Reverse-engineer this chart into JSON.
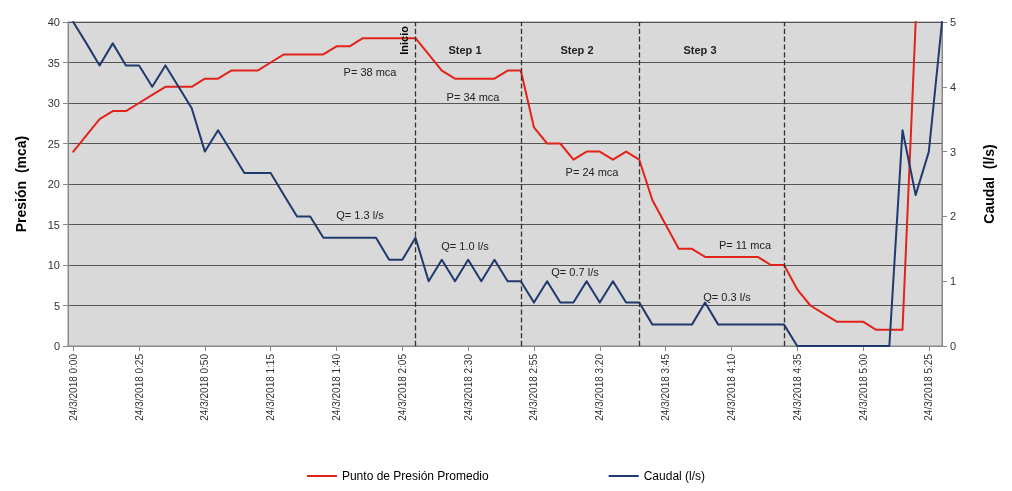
{
  "chart_data": {
    "type": "line",
    "ylabel": "Presión  (mca)",
    "y2label": "Caudal  (l/s)",
    "x": [
      "2018-03-24T00:00",
      "2018-03-24T00:05",
      "2018-03-24T00:10",
      "2018-03-24T00:15",
      "2018-03-24T00:20",
      "2018-03-24T00:25",
      "2018-03-24T00:30",
      "2018-03-24T00:35",
      "2018-03-24T00:40",
      "2018-03-24T00:45",
      "2018-03-24T00:50",
      "2018-03-24T00:55",
      "2018-03-24T01:00",
      "2018-03-24T01:05",
      "2018-03-24T01:10",
      "2018-03-24T01:15",
      "2018-03-24T01:20",
      "2018-03-24T01:25",
      "2018-03-24T01:30",
      "2018-03-24T01:35",
      "2018-03-24T01:40",
      "2018-03-24T01:45",
      "2018-03-24T01:50",
      "2018-03-24T01:55",
      "2018-03-24T02:00",
      "2018-03-24T02:05",
      "2018-03-24T02:10",
      "2018-03-24T02:15",
      "2018-03-24T02:20",
      "2018-03-24T02:25",
      "2018-03-24T02:30",
      "2018-03-24T02:35",
      "2018-03-24T02:40",
      "2018-03-24T02:45",
      "2018-03-24T02:50",
      "2018-03-24T02:55",
      "2018-03-24T03:00",
      "2018-03-24T03:05",
      "2018-03-24T03:10",
      "2018-03-24T03:15",
      "2018-03-24T03:20",
      "2018-03-24T03:25",
      "2018-03-24T03:30",
      "2018-03-24T03:35",
      "2018-03-24T03:40",
      "2018-03-24T03:45",
      "2018-03-24T03:50",
      "2018-03-24T03:55",
      "2018-03-24T04:00",
      "2018-03-24T04:05",
      "2018-03-24T04:10",
      "2018-03-24T04:15",
      "2018-03-24T04:20",
      "2018-03-24T04:25",
      "2018-03-24T04:30",
      "2018-03-24T04:35",
      "2018-03-24T04:40",
      "2018-03-24T04:45",
      "2018-03-24T04:50",
      "2018-03-24T04:55",
      "2018-03-24T05:00",
      "2018-03-24T05:05",
      "2018-03-24T05:10",
      "2018-03-24T05:15",
      "2018-03-24T05:20",
      "2018-03-24T05:25",
      "2018-03-24T05:30"
    ],
    "series": [
      {
        "name": "Punto de Presión Promedio",
        "color": "#e2231a",
        "values": [
          24,
          26,
          28,
          29,
          29,
          30,
          31,
          32,
          32,
          32,
          33,
          33,
          34,
          34,
          34,
          35,
          36,
          36,
          36,
          36,
          37,
          37,
          38,
          38,
          38,
          38,
          38,
          36,
          34,
          33,
          33,
          33,
          33,
          34,
          34,
          27,
          25,
          25,
          23,
          24,
          24,
          23,
          24,
          23,
          18,
          15,
          12,
          12,
          11,
          11,
          11,
          11,
          11,
          10,
          10,
          7,
          5,
          4,
          3,
          3,
          3,
          2,
          2,
          2,
          40,
          null,
          null
        ]
      },
      {
        "name": "Caudal (l/s)",
        "color": "#1f3a6e",
        "axis": "y2",
        "values": [
          5,
          4.67,
          4.33,
          4.67,
          4.33,
          4.33,
          4,
          4.33,
          4,
          3.67,
          3,
          3.33,
          3,
          2.67,
          2.67,
          2.67,
          2.33,
          2,
          2,
          1.67,
          1.67,
          1.67,
          1.67,
          1.67,
          1.33,
          1.33,
          1.67,
          1,
          1.33,
          1,
          1.33,
          1,
          1.33,
          1,
          1,
          0.67,
          1,
          0.67,
          0.67,
          1,
          0.67,
          1,
          0.67,
          0.67,
          0.33,
          0.33,
          0.33,
          0.33,
          0.67,
          0.33,
          0.33,
          0.33,
          0.33,
          0.33,
          0.33,
          0,
          0,
          0,
          0,
          0,
          0,
          0,
          0,
          3.33,
          2.33,
          3,
          5
        ]
      }
    ],
    "xlim": [
      "2018-03-23T23:58",
      "2018-03-24T05:30"
    ],
    "xticks": [
      {
        "value": "2018-03-24T00:00",
        "label": "24/3/2018 0:00"
      },
      {
        "value": "2018-03-24T00:25",
        "label": "24/3/2018 0:25"
      },
      {
        "value": "2018-03-24T00:50",
        "label": "24/3/2018 0:50"
      },
      {
        "value": "2018-03-24T01:15",
        "label": "24/3/2018 1:15"
      },
      {
        "value": "2018-03-24T01:40",
        "label": "24/3/2018 1:40"
      },
      {
        "value": "2018-03-24T02:05",
        "label": "24/3/2018 2:05"
      },
      {
        "value": "2018-03-24T02:30",
        "label": "24/3/2018 2:30"
      },
      {
        "value": "2018-03-24T02:55",
        "label": "24/3/2018 2:55"
      },
      {
        "value": "2018-03-24T03:20",
        "label": "24/3/2018 3:20"
      },
      {
        "value": "2018-03-24T03:45",
        "label": "24/3/2018 3:45"
      },
      {
        "value": "2018-03-24T04:10",
        "label": "24/3/2018 4:10"
      },
      {
        "value": "2018-03-24T04:35",
        "label": "24/3/2018 4:35"
      },
      {
        "value": "2018-03-24T05:00",
        "label": "24/3/2018 5:00"
      },
      {
        "value": "2018-03-24T05:25",
        "label": "24/3/2018 5:25"
      }
    ],
    "ylim": [
      0,
      40
    ],
    "yticks": [
      0,
      5,
      10,
      15,
      20,
      25,
      30,
      35,
      40
    ],
    "y2lim": [
      0,
      5
    ],
    "y2ticks": [
      0,
      1,
      2,
      3,
      4,
      5
    ],
    "grid": "y",
    "legend": "bottom",
    "marker": "none",
    "line_style": "solid",
    "ref_lines": [
      {
        "axis": "x",
        "value": "2018-03-24T02:10",
        "label": "Inicio",
        "line_style": "dashed",
        "color": "#333333"
      },
      {
        "axis": "x",
        "value": "2018-03-24T02:50",
        "label": null,
        "line_style": "dashed",
        "color": "#333333"
      },
      {
        "axis": "x",
        "value": "2018-03-24T03:35",
        "label": null,
        "line_style": "dashed",
        "color": "#333333"
      },
      {
        "axis": "x",
        "value": "2018-03-24T04:30",
        "label": null,
        "line_style": "dashed",
        "color": "#333333"
      }
    ],
    "annotations": [
      "Step 1",
      "Step 2",
      "Step 3",
      "P= 38 mca",
      "P= 34 mca",
      "P= 24 mca",
      "P= 11 mca",
      "Q= 1.3 l/s",
      "Q= 1.0 l/s",
      "Q= 0.7 l/s",
      "Q= 0.3 l/s"
    ]
  }
}
